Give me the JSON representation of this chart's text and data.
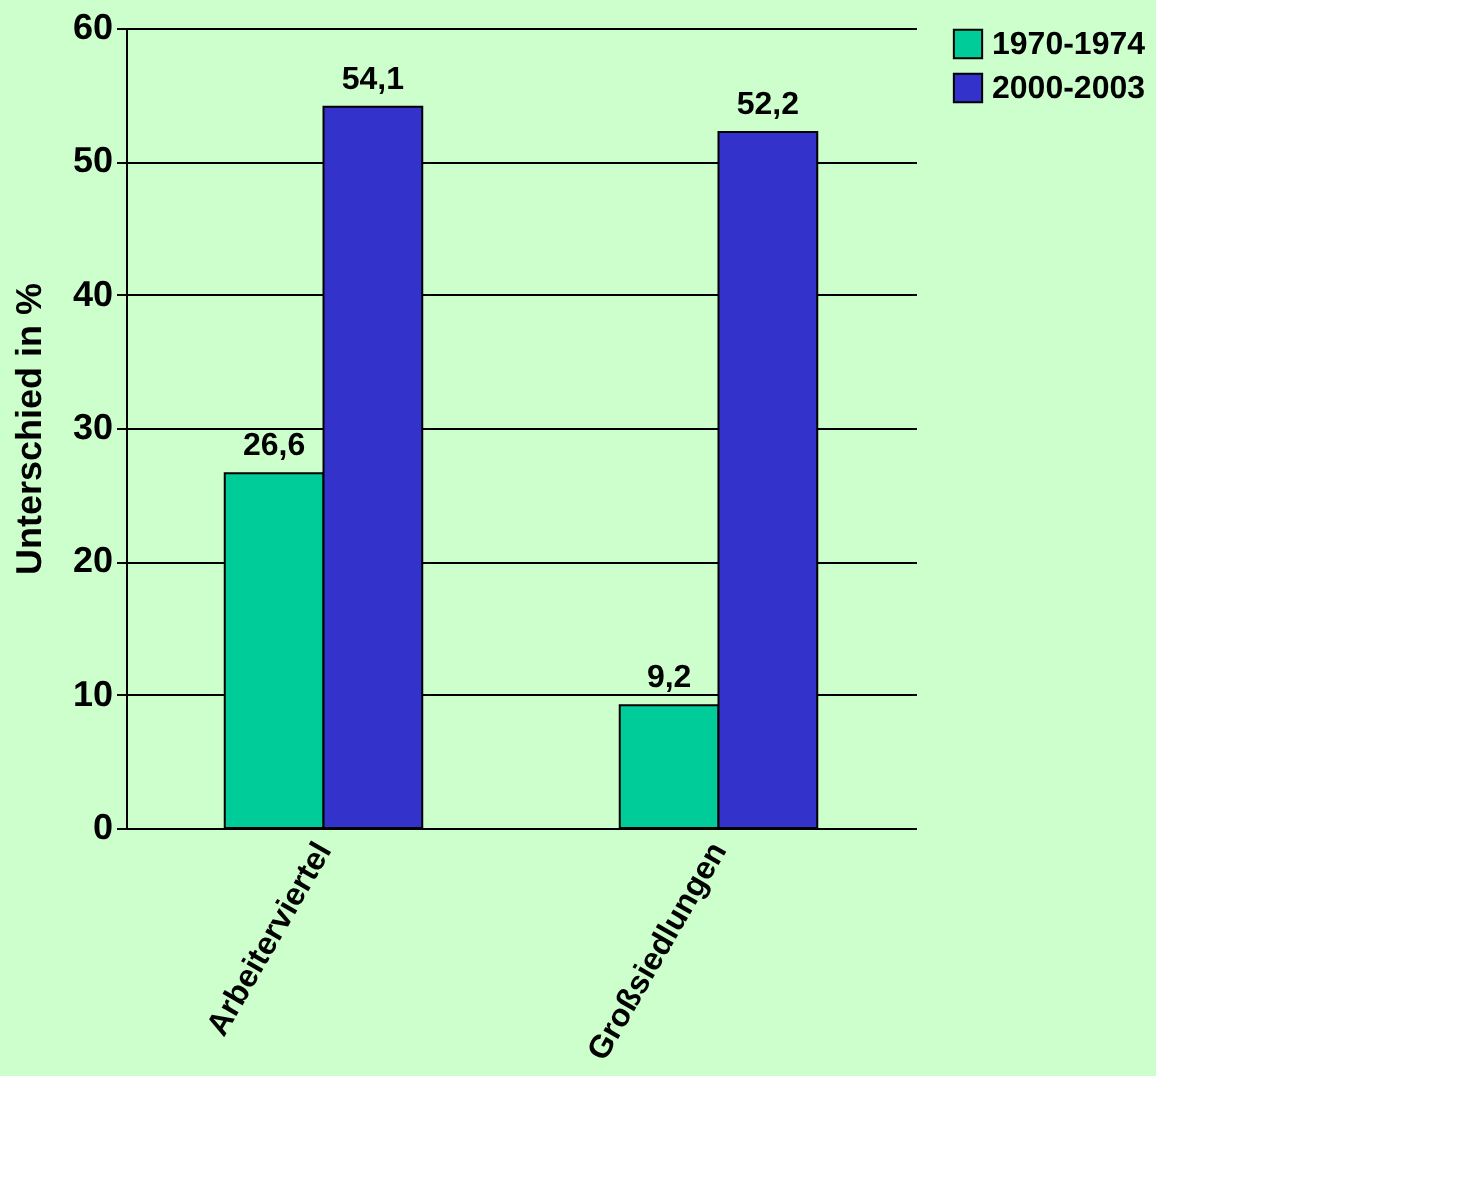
{
  "chart_data": {
    "type": "bar",
    "ylabel": "Unterschied in %",
    "categories": [
      "Arbeiterviertel",
      "Großsiedlungen"
    ],
    "series": [
      {
        "name": "1970-1974",
        "color": "#00cc99",
        "values": [
          26.6,
          9.2
        ],
        "value_labels": [
          "26,6",
          "9,2"
        ]
      },
      {
        "name": "2000-2003",
        "color": "#3333cc",
        "values": [
          54.1,
          52.2
        ],
        "value_labels": [
          "54,1",
          "52,2"
        ]
      }
    ],
    "ylim": [
      0,
      60
    ],
    "yticks": [
      0,
      10,
      20,
      30,
      40,
      50,
      60
    ],
    "grid": "y",
    "legend": "right"
  }
}
